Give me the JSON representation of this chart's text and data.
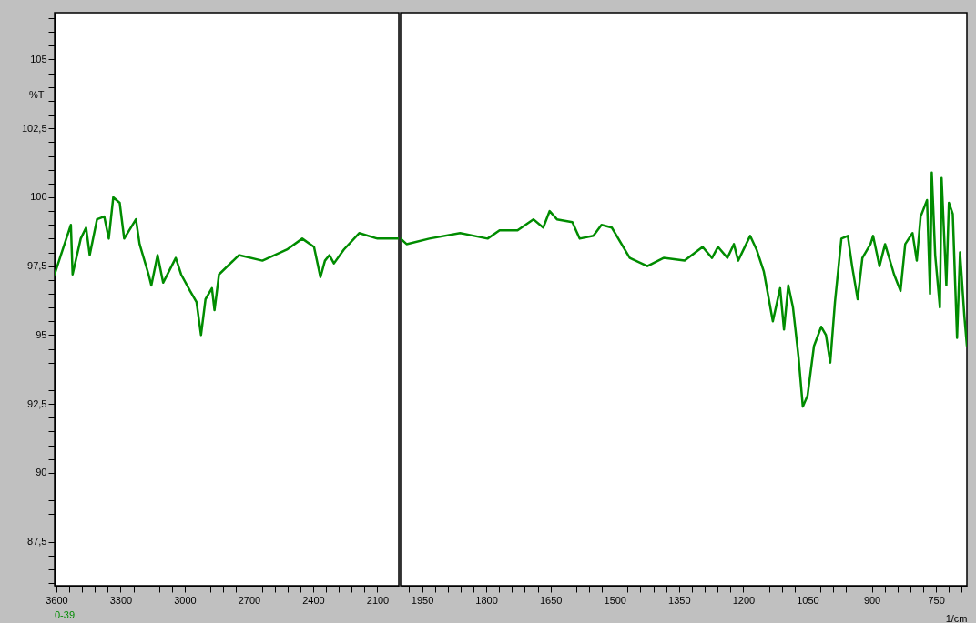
{
  "chart_data": [
    {
      "type": "line",
      "ylabel": "%T",
      "xlim": [
        3608,
        2000
      ],
      "ylim": [
        85.9,
        106.7
      ],
      "xticks": [
        3600,
        {
          "value": 3540,
          "label": null
        },
        {
          "value": 3480,
          "label": null
        },
        {
          "value": 3420,
          "label": null
        },
        {
          "value": 3360,
          "label": null
        },
        3300,
        {
          "value": 3240,
          "label": null
        },
        {
          "value": 3180,
          "label": null
        },
        {
          "value": 3120,
          "label": null
        },
        {
          "value": 3060,
          "label": null
        },
        3000,
        {
          "value": 2940,
          "label": null
        },
        {
          "value": 2880,
          "label": null
        },
        {
          "value": 2820,
          "label": null
        },
        {
          "value": 2760,
          "label": null
        },
        2700,
        {
          "value": 2640,
          "label": null
        },
        {
          "value": 2580,
          "label": null
        },
        {
          "value": 2520,
          "label": null
        },
        {
          "value": 2460,
          "label": null
        },
        2400,
        {
          "value": 2340,
          "label": null
        },
        {
          "value": 2280,
          "label": null
        },
        {
          "value": 2220,
          "label": null
        },
        {
          "value": 2160,
          "label": null
        },
        2100,
        {
          "value": 2040,
          "label": null
        }
      ],
      "yticks": [
        {
          "value": 86,
          "label": null
        },
        {
          "value": 86.5,
          "label": null
        },
        {
          "value": 87,
          "label": null
        },
        {
          "value": 87.5,
          "label": "87,5"
        },
        {
          "value": 88,
          "label": null
        },
        {
          "value": 88.5,
          "label": null
        },
        {
          "value": 89,
          "label": null
        },
        {
          "value": 89.5,
          "label": null
        },
        90,
        {
          "value": 90.5,
          "label": null
        },
        {
          "value": 91,
          "label": null
        },
        {
          "value": 91.5,
          "label": null
        },
        {
          "value": 92,
          "label": null
        },
        {
          "value": 92.5,
          "label": "92,5"
        },
        {
          "value": 93,
          "label": null
        },
        {
          "value": 93.5,
          "label": null
        },
        {
          "value": 94,
          "label": null
        },
        {
          "value": 94.5,
          "label": null
        },
        95,
        {
          "value": 95.5,
          "label": null
        },
        {
          "value": 96,
          "label": null
        },
        {
          "value": 96.5,
          "label": null
        },
        {
          "value": 97,
          "label": null
        },
        {
          "value": 97.5,
          "label": "97,5"
        },
        {
          "value": 98,
          "label": null
        },
        {
          "value": 98.5,
          "label": null
        },
        {
          "value": 99,
          "label": null
        },
        {
          "value": 99.5,
          "label": null
        },
        100,
        {
          "value": 100.5,
          "label": null
        },
        {
          "value": 101,
          "label": null
        },
        {
          "value": 101.5,
          "label": null
        },
        {
          "value": 102,
          "label": null
        },
        {
          "value": 102.5,
          "label": "102,5"
        },
        {
          "value": 103,
          "label": null
        },
        {
          "value": 103.5,
          "label": null
        },
        {
          "value": 104,
          "label": null
        },
        {
          "value": 104.5,
          "label": null
        },
        105,
        {
          "value": 105.5,
          "label": null
        },
        {
          "value": 106,
          "label": null
        },
        {
          "value": 106.5,
          "label": null
        }
      ],
      "x": [
        3608,
        3579,
        3532,
        3524,
        3486,
        3461,
        3444,
        3410,
        3376,
        3355,
        3334,
        3304,
        3283,
        3228,
        3211,
        3169,
        3156,
        3127,
        3101,
        3042,
        3017,
        2975,
        2945,
        2924,
        2903,
        2873,
        2861,
        2840,
        2747,
        2637,
        2523,
        2451,
        2396,
        2366,
        2345,
        2324,
        2303,
        2257,
        2185,
        2100,
        2000
      ],
      "series": [
        {
          "name": "0-39",
          "color": "#008c00",
          "values": [
            97.2,
            97.9,
            99.0,
            97.2,
            98.5,
            98.9,
            97.9,
            99.2,
            99.3,
            98.5,
            100.0,
            99.8,
            98.5,
            99.2,
            98.3,
            97.2,
            96.8,
            97.9,
            96.9,
            97.8,
            97.2,
            96.6,
            96.2,
            95.0,
            96.3,
            96.7,
            95.9,
            97.2,
            97.9,
            97.7,
            98.1,
            98.5,
            98.2,
            97.1,
            97.7,
            97.9,
            97.6,
            98.1,
            98.7,
            98.5,
            98.5
          ]
        }
      ]
    },
    {
      "type": "line",
      "xlabel": "1/cm",
      "xlim": [
        2000,
        678
      ],
      "ylim": [
        85.9,
        106.7
      ],
      "tick_labels": "x",
      "xticks": [
        {
          "value": 1980,
          "label": null
        },
        1950,
        {
          "value": 1920,
          "label": null
        },
        {
          "value": 1890,
          "label": null
        },
        {
          "value": 1860,
          "label": null
        },
        {
          "value": 1830,
          "label": null
        },
        1800,
        {
          "value": 1770,
          "label": null
        },
        {
          "value": 1740,
          "label": null
        },
        {
          "value": 1710,
          "label": null
        },
        {
          "value": 1680,
          "label": null
        },
        1650,
        {
          "value": 1620,
          "label": null
        },
        {
          "value": 1590,
          "label": null
        },
        {
          "value": 1560,
          "label": null
        },
        {
          "value": 1530,
          "label": null
        },
        1500,
        {
          "value": 1470,
          "label": null
        },
        {
          "value": 1440,
          "label": null
        },
        {
          "value": 1410,
          "label": null
        },
        {
          "value": 1380,
          "label": null
        },
        1350,
        {
          "value": 1320,
          "label": null
        },
        {
          "value": 1290,
          "label": null
        },
        {
          "value": 1260,
          "label": null
        },
        {
          "value": 1230,
          "label": null
        },
        1200,
        {
          "value": 1170,
          "label": null
        },
        {
          "value": 1140,
          "label": null
        },
        {
          "value": 1110,
          "label": null
        },
        {
          "value": 1080,
          "label": null
        },
        1050,
        {
          "value": 1020,
          "label": null
        },
        {
          "value": 990,
          "label": null
        },
        {
          "value": 960,
          "label": null
        },
        {
          "value": 930,
          "label": null
        },
        900,
        {
          "value": 870,
          "label": null
        },
        {
          "value": 840,
          "label": null
        },
        {
          "value": 810,
          "label": null
        },
        {
          "value": 780,
          "label": null
        },
        750,
        {
          "value": 720,
          "label": null
        },
        {
          "value": 690,
          "label": null
        }
      ],
      "x": [
        2000,
        1986,
        1933,
        1861,
        1797,
        1769,
        1727,
        1690,
        1667,
        1652,
        1635,
        1599,
        1582,
        1550,
        1531,
        1507,
        1465,
        1424,
        1386,
        1337,
        1295,
        1273,
        1259,
        1237,
        1222,
        1212,
        1184,
        1169,
        1152,
        1131,
        1114,
        1105,
        1095,
        1084,
        1071,
        1061,
        1050,
        1035,
        1018,
        1007,
        997,
        986,
        971,
        956,
        946,
        933,
        922,
        903,
        897,
        882,
        869,
        848,
        833,
        822,
        805,
        795,
        786,
        771,
        764,
        760,
        752,
        741,
        737,
        726,
        720,
        711,
        701,
        694,
        684,
        678
      ],
      "series": [
        {
          "color": "#008c00",
          "values": [
            98.5,
            98.3,
            98.5,
            98.7,
            98.5,
            98.8,
            98.8,
            99.2,
            98.9,
            99.5,
            99.2,
            99.1,
            98.5,
            98.6,
            99.0,
            98.9,
            97.8,
            97.5,
            97.8,
            97.7,
            98.2,
            97.8,
            98.2,
            97.8,
            98.3,
            97.7,
            98.6,
            98.1,
            97.3,
            95.5,
            96.7,
            95.2,
            96.8,
            96.0,
            94.2,
            92.4,
            92.8,
            94.6,
            95.3,
            95.0,
            94.0,
            96.2,
            98.5,
            98.6,
            97.5,
            96.3,
            97.8,
            98.3,
            98.6,
            97.5,
            98.3,
            97.2,
            96.6,
            98.3,
            98.7,
            97.7,
            99.3,
            99.9,
            96.5,
            100.9,
            97.9,
            96.0,
            100.7,
            96.8,
            99.8,
            99.4,
            94.9,
            98.0,
            95.7,
            94.6
          ]
        }
      ]
    }
  ]
}
